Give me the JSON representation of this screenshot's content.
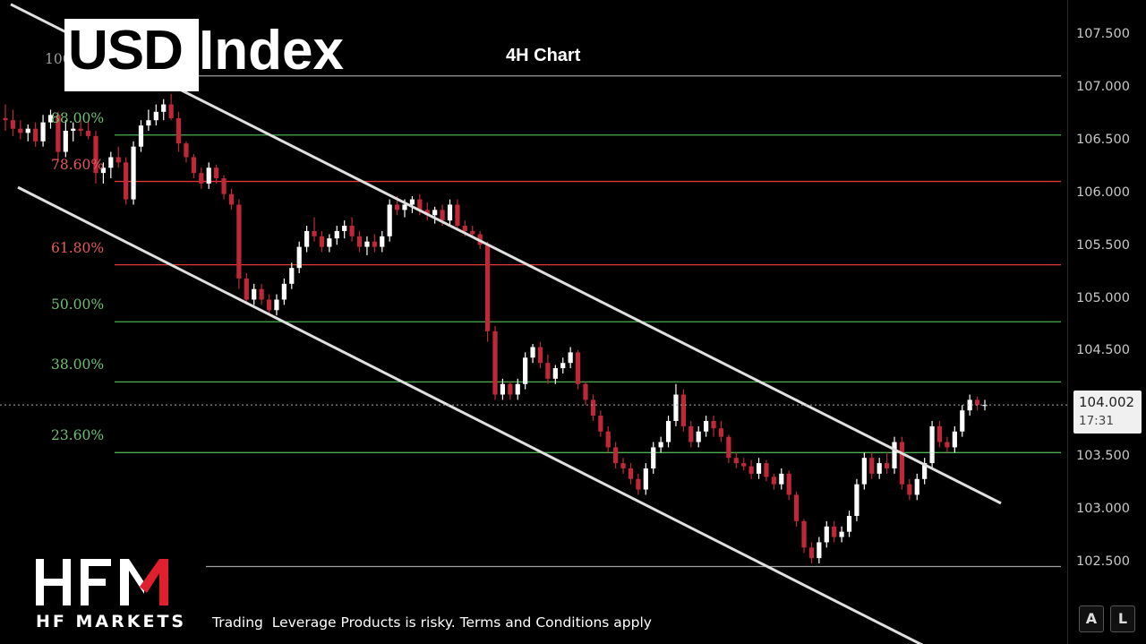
{
  "title": {
    "part1": "USD",
    "part2": "Index"
  },
  "subtitle": "4H Chart",
  "price_tag": {
    "price": "104.002",
    "countdown": "17:31"
  },
  "buttons": {
    "auto": "A",
    "log": "L"
  },
  "brand": {
    "logo_text": "HFM",
    "name": "HF MARKETS"
  },
  "disclaimer": "Trading  Leverage Products is risky. Terms and Conditions apply",
  "colors": {
    "up": "#ffffff",
    "down": "#c0283a",
    "fib_green": "#4caf50",
    "fib_red": "#e53935",
    "channel": "#e0e0e0",
    "background": "#000000"
  },
  "chart_data": {
    "type": "candlestick",
    "title": "4H Chart",
    "ylim": [
      102.3,
      107.8
    ],
    "y_ticks": [
      "107.500",
      "107.000",
      "106.500",
      "106.000",
      "105.500",
      "105.000",
      "104.500",
      "104.000",
      "103.500",
      "103.000",
      "102.500"
    ],
    "current_price": 104.002,
    "fibonacci_levels": [
      {
        "label": "100",
        "price": 107.12,
        "color": "grey"
      },
      {
        "label": "88.00%",
        "price": 106.56,
        "color": "green"
      },
      {
        "label": "78.60%",
        "price": 106.12,
        "color": "red"
      },
      {
        "label": "61.80%",
        "price": 105.33,
        "color": "red"
      },
      {
        "label": "50.00%",
        "price": 104.79,
        "color": "green"
      },
      {
        "label": "38.00%",
        "price": 104.22,
        "color": "green"
      },
      {
        "label": "23.60%",
        "price": 103.55,
        "color": "green"
      },
      {
        "label": "",
        "price": 102.47,
        "color": "grey"
      }
    ],
    "channel": {
      "upper": [
        [
          0,
          107.85
        ],
        [
          1118,
          103.07
        ]
      ],
      "lower": [
        [
          0,
          106.15
        ],
        [
          1118,
          101.35
        ]
      ]
    },
    "candles_ohlc": [
      [
        106.72,
        106.85,
        106.6,
        106.7
      ],
      [
        106.7,
        106.8,
        106.55,
        106.62
      ],
      [
        106.62,
        106.7,
        106.52,
        106.58
      ],
      [
        106.58,
        106.66,
        106.5,
        106.62
      ],
      [
        106.62,
        106.68,
        106.45,
        106.5
      ],
      [
        106.5,
        106.75,
        106.45,
        106.68
      ],
      [
        106.68,
        106.8,
        106.62,
        106.75
      ],
      [
        106.75,
        106.78,
        106.3,
        106.4
      ],
      [
        106.4,
        106.7,
        106.35,
        106.6
      ],
      [
        106.6,
        106.68,
        106.5,
        106.62
      ],
      [
        106.62,
        106.7,
        106.55,
        106.6
      ],
      [
        106.6,
        106.7,
        106.52,
        106.55
      ],
      [
        106.55,
        106.6,
        106.1,
        106.2
      ],
      [
        106.2,
        106.3,
        106.1,
        106.25
      ],
      [
        106.25,
        106.4,
        106.15,
        106.35
      ],
      [
        106.35,
        106.45,
        106.25,
        106.3
      ],
      [
        106.3,
        106.35,
        105.9,
        105.95
      ],
      [
        105.95,
        106.5,
        105.9,
        106.45
      ],
      [
        106.45,
        106.7,
        106.4,
        106.65
      ],
      [
        106.65,
        106.8,
        106.6,
        106.7
      ],
      [
        106.7,
        106.85,
        106.65,
        106.78
      ],
      [
        106.78,
        106.9,
        106.7,
        106.85
      ],
      [
        106.85,
        106.95,
        106.7,
        106.72
      ],
      [
        106.72,
        106.78,
        106.4,
        106.48
      ],
      [
        106.48,
        106.5,
        106.3,
        106.35
      ],
      [
        106.35,
        106.38,
        106.15,
        106.2
      ],
      [
        106.2,
        106.25,
        106.05,
        106.1
      ],
      [
        106.1,
        106.3,
        106.05,
        106.25
      ],
      [
        106.25,
        106.28,
        106.1,
        106.15
      ],
      [
        106.15,
        106.18,
        105.95,
        106.0
      ],
      [
        106.0,
        106.05,
        105.85,
        105.9
      ],
      [
        105.9,
        105.95,
        105.1,
        105.2
      ],
      [
        105.2,
        105.25,
        104.95,
        105.0
      ],
      [
        105.0,
        105.15,
        104.95,
        105.1
      ],
      [
        105.1,
        105.15,
        104.95,
        105.0
      ],
      [
        105.0,
        105.05,
        104.85,
        104.9
      ],
      [
        104.9,
        105.05,
        104.85,
        105.0
      ],
      [
        105.0,
        105.2,
        104.95,
        105.15
      ],
      [
        105.15,
        105.35,
        105.1,
        105.3
      ],
      [
        105.3,
        105.55,
        105.25,
        105.5
      ],
      [
        105.5,
        105.7,
        105.45,
        105.65
      ],
      [
        105.65,
        105.78,
        105.55,
        105.6
      ],
      [
        105.6,
        105.65,
        105.45,
        105.5
      ],
      [
        105.5,
        105.62,
        105.45,
        105.58
      ],
      [
        105.58,
        105.7,
        105.52,
        105.65
      ],
      [
        105.65,
        105.75,
        105.58,
        105.7
      ],
      [
        105.7,
        105.78,
        105.55,
        105.6
      ],
      [
        105.6,
        105.65,
        105.45,
        105.5
      ],
      [
        105.5,
        105.6,
        105.42,
        105.55
      ],
      [
        105.55,
        105.62,
        105.45,
        105.5
      ],
      [
        105.5,
        105.65,
        105.45,
        105.6
      ],
      [
        105.6,
        105.95,
        105.55,
        105.9
      ],
      [
        105.9,
        105.98,
        105.8,
        105.85
      ],
      [
        105.85,
        105.95,
        105.78,
        105.9
      ],
      [
        105.9,
        105.98,
        105.82,
        105.95
      ],
      [
        105.95,
        106.0,
        105.8,
        105.85
      ],
      [
        105.85,
        105.92,
        105.75,
        105.8
      ],
      [
        105.8,
        105.88,
        105.72,
        105.85
      ],
      [
        105.85,
        105.9,
        105.7,
        105.75
      ],
      [
        105.75,
        105.95,
        105.7,
        105.9
      ],
      [
        105.9,
        105.95,
        105.65,
        105.7
      ],
      [
        105.7,
        105.75,
        105.6,
        105.65
      ],
      [
        105.65,
        105.7,
        105.58,
        105.62
      ],
      [
        105.62,
        105.65,
        105.48,
        105.52
      ],
      [
        105.52,
        105.55,
        104.6,
        104.7
      ],
      [
        104.7,
        104.75,
        104.05,
        104.1
      ],
      [
        104.1,
        104.25,
        104.05,
        104.2
      ],
      [
        104.2,
        104.22,
        104.05,
        104.1
      ],
      [
        104.1,
        104.25,
        104.05,
        104.2
      ],
      [
        104.2,
        104.5,
        104.15,
        104.45
      ],
      [
        104.45,
        104.58,
        104.4,
        104.55
      ],
      [
        104.55,
        104.6,
        104.35,
        104.4
      ],
      [
        104.4,
        104.48,
        104.2,
        104.25
      ],
      [
        104.25,
        104.38,
        104.2,
        104.35
      ],
      [
        104.35,
        104.45,
        104.3,
        104.4
      ],
      [
        104.4,
        104.55,
        104.35,
        104.5
      ],
      [
        104.5,
        104.52,
        104.15,
        104.2
      ],
      [
        104.2,
        104.22,
        104.0,
        104.05
      ],
      [
        104.05,
        104.1,
        103.85,
        103.9
      ],
      [
        103.9,
        103.95,
        103.7,
        103.75
      ],
      [
        103.75,
        103.8,
        103.55,
        103.6
      ],
      [
        103.6,
        103.65,
        103.4,
        103.45
      ],
      [
        103.45,
        103.5,
        103.35,
        103.4
      ],
      [
        103.4,
        103.45,
        103.25,
        103.3
      ],
      [
        103.3,
        103.35,
        103.15,
        103.2
      ],
      [
        103.2,
        103.45,
        103.15,
        103.4
      ],
      [
        103.4,
        103.65,
        103.35,
        103.6
      ],
      [
        103.6,
        103.7,
        103.55,
        103.65
      ],
      [
        103.65,
        103.9,
        103.6,
        103.85
      ],
      [
        103.85,
        104.2,
        103.8,
        104.1
      ],
      [
        104.1,
        104.15,
        103.75,
        103.8
      ],
      [
        103.8,
        103.85,
        103.6,
        103.65
      ],
      [
        103.65,
        103.8,
        103.6,
        103.75
      ],
      [
        103.75,
        103.9,
        103.7,
        103.85
      ],
      [
        103.85,
        103.9,
        103.7,
        103.78
      ],
      [
        103.78,
        103.85,
        103.65,
        103.7
      ],
      [
        103.7,
        103.72,
        103.45,
        103.5
      ],
      [
        103.5,
        103.55,
        103.4,
        103.45
      ],
      [
        103.45,
        103.5,
        103.38,
        103.42
      ],
      [
        103.42,
        103.48,
        103.3,
        103.35
      ],
      [
        103.35,
        103.5,
        103.3,
        103.45
      ],
      [
        103.45,
        103.48,
        103.28,
        103.32
      ],
      [
        103.32,
        103.35,
        103.2,
        103.25
      ],
      [
        103.25,
        103.4,
        103.2,
        103.35
      ],
      [
        103.35,
        103.38,
        103.1,
        103.15
      ],
      [
        103.15,
        103.18,
        102.85,
        102.9
      ],
      [
        102.9,
        102.92,
        102.6,
        102.65
      ],
      [
        102.65,
        102.7,
        102.5,
        102.55
      ],
      [
        102.55,
        102.75,
        102.5,
        102.7
      ],
      [
        102.7,
        102.9,
        102.65,
        102.85
      ],
      [
        102.85,
        102.9,
        102.7,
        102.75
      ],
      [
        102.75,
        102.85,
        102.7,
        102.8
      ],
      [
        102.8,
        103.0,
        102.75,
        102.95
      ],
      [
        102.95,
        103.3,
        102.9,
        103.25
      ],
      [
        103.25,
        103.55,
        103.2,
        103.5
      ],
      [
        103.5,
        103.55,
        103.3,
        103.35
      ],
      [
        103.35,
        103.5,
        103.3,
        103.45
      ],
      [
        103.45,
        103.55,
        103.35,
        103.4
      ],
      [
        103.4,
        103.7,
        103.35,
        103.65
      ],
      [
        103.65,
        103.7,
        103.2,
        103.25
      ],
      [
        103.25,
        103.3,
        103.1,
        103.15
      ],
      [
        103.15,
        103.35,
        103.1,
        103.3
      ],
      [
        103.3,
        103.5,
        103.25,
        103.45
      ],
      [
        103.45,
        103.85,
        103.4,
        103.8
      ],
      [
        103.8,
        103.85,
        103.6,
        103.65
      ],
      [
        103.65,
        103.7,
        103.55,
        103.6
      ],
      [
        103.6,
        103.8,
        103.55,
        103.75
      ],
      [
        103.75,
        104.0,
        103.7,
        103.95
      ],
      [
        103.95,
        104.1,
        103.9,
        104.05
      ],
      [
        104.05,
        104.08,
        103.95,
        104.0
      ],
      [
        104.0,
        104.05,
        103.95,
        104.002
      ]
    ]
  }
}
